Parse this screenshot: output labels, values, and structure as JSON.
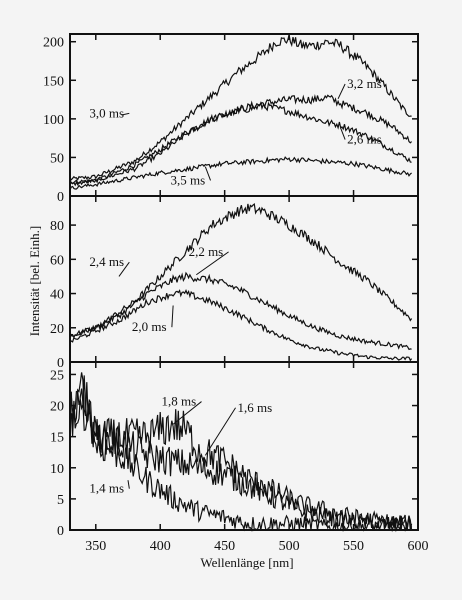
{
  "chart_data": {
    "type": "line",
    "xlabel": "Wellenlänge [nm]",
    "ylabel": "Intensität [bel. Einh.]",
    "xlim": [
      330,
      600
    ],
    "x_ticks": [
      350,
      400,
      450,
      500,
      550,
      600
    ],
    "grid": false,
    "panels": [
      {
        "ylim": [
          0,
          210
        ],
        "y_ticks": [
          0,
          50,
          100,
          150,
          200
        ],
        "series": [
          {
            "name": "3,0 ms",
            "x": [
              330,
              350,
              380,
              400,
              420,
              440,
              460,
              480,
              490,
              500,
              510,
              520,
              530,
              540,
              550,
              560,
              570,
              580,
              590,
              595
            ],
            "y": [
              22,
              25,
              45,
              70,
              100,
              130,
              160,
              185,
              200,
              203,
              195,
              195,
              200,
              195,
              182,
              168,
              150,
              130,
              110,
              105
            ]
          },
          {
            "name": "3,2 ms",
            "x": [
              330,
              350,
              380,
              400,
              420,
              440,
              460,
              480,
              500,
              520,
              530,
              540,
              560,
              580,
              595
            ],
            "y": [
              18,
              20,
              40,
              60,
              82,
              100,
              112,
              120,
              125,
              125,
              128,
              120,
              108,
              90,
              70
            ]
          },
          {
            "name": "2,6 ms",
            "x": [
              330,
              350,
              380,
              400,
              420,
              440,
              460,
              480,
              500,
              520,
              530,
              540,
              550,
              560,
              580,
              595
            ],
            "y": [
              15,
              20,
              35,
              55,
              80,
              100,
              110,
              117,
              110,
              100,
              95,
              92,
              85,
              78,
              60,
              45
            ]
          },
          {
            "name": "3,5 ms",
            "x": [
              330,
              350,
              400,
              450,
              500,
              550,
              595
            ],
            "y": [
              10,
              15,
              30,
              42,
              48,
              42,
              28
            ]
          }
        ],
        "annotations": [
          {
            "text": "3,0 ms",
            "x": 345,
            "y": 102,
            "at_x": 370,
            "at_y": 105
          },
          {
            "text": "3,2 ms",
            "x": 545,
            "y": 140,
            "at_x": 538,
            "at_y": 126
          },
          {
            "text": "2,6 ms",
            "x": 545,
            "y": 68,
            "at_x": 540,
            "at_y": 88
          },
          {
            "text": "3,5 ms",
            "x": 408,
            "y": 15,
            "at_x": 435,
            "at_y": 38
          }
        ]
      },
      {
        "ylim": [
          0,
          97
        ],
        "y_ticks": [
          0,
          20,
          40,
          60,
          80
        ],
        "series": [
          {
            "name": "2,4 ms",
            "x": [
              330,
              350,
              380,
              400,
              420,
              440,
              460,
              470,
              480,
              500,
              520,
              540,
              560,
              580,
              595
            ],
            "y": [
              15,
              20,
              35,
              50,
              65,
              80,
              88,
              90,
              88,
              80,
              70,
              58,
              48,
              35,
              25
            ]
          },
          {
            "name": "2,2 ms",
            "x": [
              330,
              350,
              370,
              390,
              410,
              420,
              440,
              460,
              480,
              500,
              520,
              540,
              560,
              580,
              595
            ],
            "y": [
              15,
              20,
              28,
              40,
              48,
              50,
              48,
              43,
              35,
              27,
              20,
              15,
              12,
              10,
              8
            ]
          },
          {
            "name": "2,0 ms",
            "x": [
              330,
              350,
              370,
              390,
              410,
              420,
              440,
              460,
              480,
              500,
              520,
              540,
              560,
              580,
              595
            ],
            "y": [
              12,
              18,
              25,
              35,
              40,
              40,
              35,
              28,
              20,
              13,
              8,
              5,
              3,
              2,
              2
            ]
          }
        ],
        "annotations": [
          {
            "text": "2,4 ms",
            "x": 345,
            "y": 56,
            "at_x": 368,
            "at_y": 50
          },
          {
            "text": "2,2 ms",
            "x": 422,
            "y": 62,
            "at_x": 428,
            "at_y": 51
          },
          {
            "text": "2,0 ms",
            "x": 378,
            "y": 18,
            "at_x": 410,
            "at_y": 33
          }
        ]
      },
      {
        "ylim": [
          0,
          27
        ],
        "y_ticks": [
          0,
          5,
          10,
          15,
          20,
          25
        ],
        "series": [
          {
            "name": "1,4 ms",
            "x": [
              330,
              335,
              340,
              350,
              370,
              390,
              410,
              430,
              450,
              470,
              490,
              510,
              530,
              550,
              570,
              595
            ],
            "y": [
              20,
              18,
              24,
              14,
              12,
              8,
              5,
              3,
              2,
              1,
              1,
              1,
              0.5,
              0.5,
              0.5,
              0.5
            ]
          },
          {
            "name": "1,6 ms",
            "x": [
              330,
              340,
              350,
              370,
              390,
              410,
              430,
              450,
              470,
              490,
              510,
              530,
              550,
              570,
              595
            ],
            "y": [
              18,
              20,
              15,
              14,
              12,
              11,
              10,
              9,
              7,
              5,
              3,
              2,
              1.5,
              1,
              1
            ]
          },
          {
            "name": "1,8 ms",
            "x": [
              330,
              340,
              350,
              370,
              390,
              400,
              410,
              420,
              430,
              450,
              470,
              490,
              510,
              530,
              550,
              570,
              595
            ],
            "y": [
              17,
              22,
              15,
              15,
              15,
              16,
              17,
              16,
              13,
              11,
              8,
              6,
              4,
              3,
              2,
              1.5,
              1
            ]
          }
        ],
        "annotations": [
          {
            "text": "1,8 ms",
            "x": 401,
            "y": 20,
            "at_x": 410,
            "at_y": 17
          },
          {
            "text": "1,6 ms",
            "x": 460,
            "y": 19,
            "at_x": 435,
            "at_y": 12
          },
          {
            "text": "1,4 ms",
            "x": 345,
            "y": 6,
            "at_x": 375,
            "at_y": 8
          }
        ]
      }
    ]
  }
}
